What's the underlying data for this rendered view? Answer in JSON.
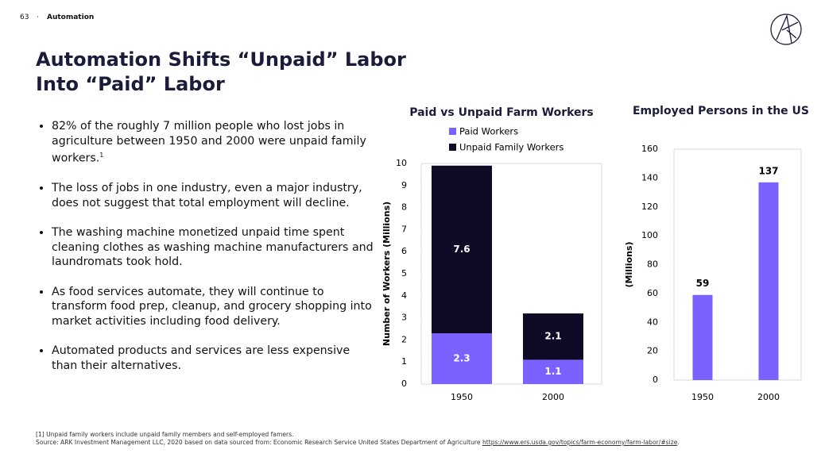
{
  "header": {
    "page": "63",
    "section": "Automation"
  },
  "title": [
    "Automation Shifts “Unpaid” Labor",
    "Into “Paid” Labor"
  ],
  "bullets": [
    "82% of the roughly 7 million people who lost jobs in agriculture between 1950 and 2000 were unpaid family workers.",
    "The loss of jobs in one industry, even a major industry, does not suggest that total employment will decline.",
    "The washing machine monetized unpaid time spent cleaning clothes as washing machine manufacturers and laundromats took hold.",
    "As food services automate, they will continue to transform food prep, cleanup, and grocery shopping into market activities including food delivery.",
    "Automated products and services are less expensive than their alternatives."
  ],
  "bullet_note": "1",
  "footnotes": {
    "note": "[1] Unpaid family workers include unpaid family members and self-employed famers.",
    "source": "Source: ARK Investment Management LLC, 2020 based on data sourced from: Economic Research Service United States Department of Agriculture",
    "link": "https://www.ers.usda.gov/topics/farm-economy/farm-labor/#size",
    "end": "."
  },
  "chart_data": [
    {
      "type": "stacked_bar",
      "title": "Paid vs Unpaid Farm Workers",
      "y_label": "Number of Workers (Millions)",
      "categories": [
        "1950",
        "2000"
      ],
      "series": [
        {
          "name": "Paid Workers",
          "color": "#7b61ff",
          "values": [
            2.3,
            1.1
          ]
        },
        {
          "name": "Unpaid Family Workers",
          "color": "#0e0b26",
          "values": [
            7.6,
            2.1
          ]
        }
      ],
      "ylim": [
        0,
        10
      ],
      "yticks": [
        0,
        1,
        2,
        3,
        4,
        5,
        6,
        7,
        8,
        9,
        10
      ],
      "legend": "top"
    },
    {
      "type": "bar",
      "title": "Employed Persons in the US",
      "y_label": "(Millions)",
      "categories": [
        "1950",
        "2000"
      ],
      "values": [
        59,
        137
      ],
      "color": "#7b61ff",
      "ylim": [
        0,
        160
      ],
      "yticks": [
        0,
        20,
        40,
        60,
        80,
        100,
        120,
        140,
        160
      ]
    }
  ]
}
